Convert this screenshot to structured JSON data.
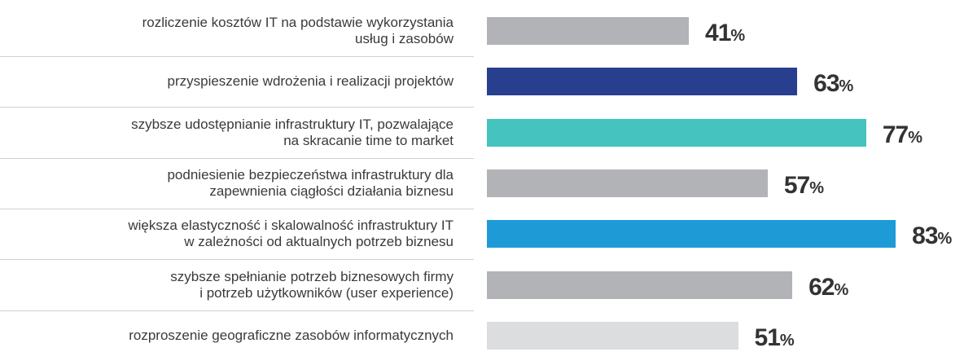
{
  "chart_data": {
    "type": "bar",
    "orientation": "horizontal",
    "categories": [
      "rozliczenie kosztów IT na podstawie wykorzystania\nusług i zasobów",
      "przyspieszenie wdrożenia i realizacji projektów",
      "szybsze udostępnianie infrastruktury IT, pozwalające\nna skracanie time to market",
      "podniesienie bezpieczeństwa infrastruktury dla\nzapewnienia ciągłości działania biznesu",
      "większa elastyczność i skalowalność infrastruktury IT\nw zależności od aktualnych potrzeb biznesu",
      "szybsze spełnianie potrzeb biznesowych firmy\ni potrzeb użytkowników (user experience)",
      "rozproszenie geograficzne zasobów informatycznych"
    ],
    "values": [
      41,
      63,
      77,
      57,
      83,
      62,
      51
    ],
    "value_labels": [
      "41%",
      "63%",
      "77%",
      "57%",
      "83%",
      "62%",
      "51%"
    ],
    "colors": [
      "#b1b3b6",
      "#283f8f",
      "#45c3bf",
      "#b1b3b6",
      "#1e9bd7",
      "#b1b3b6",
      "#dcdddf"
    ]
  }
}
